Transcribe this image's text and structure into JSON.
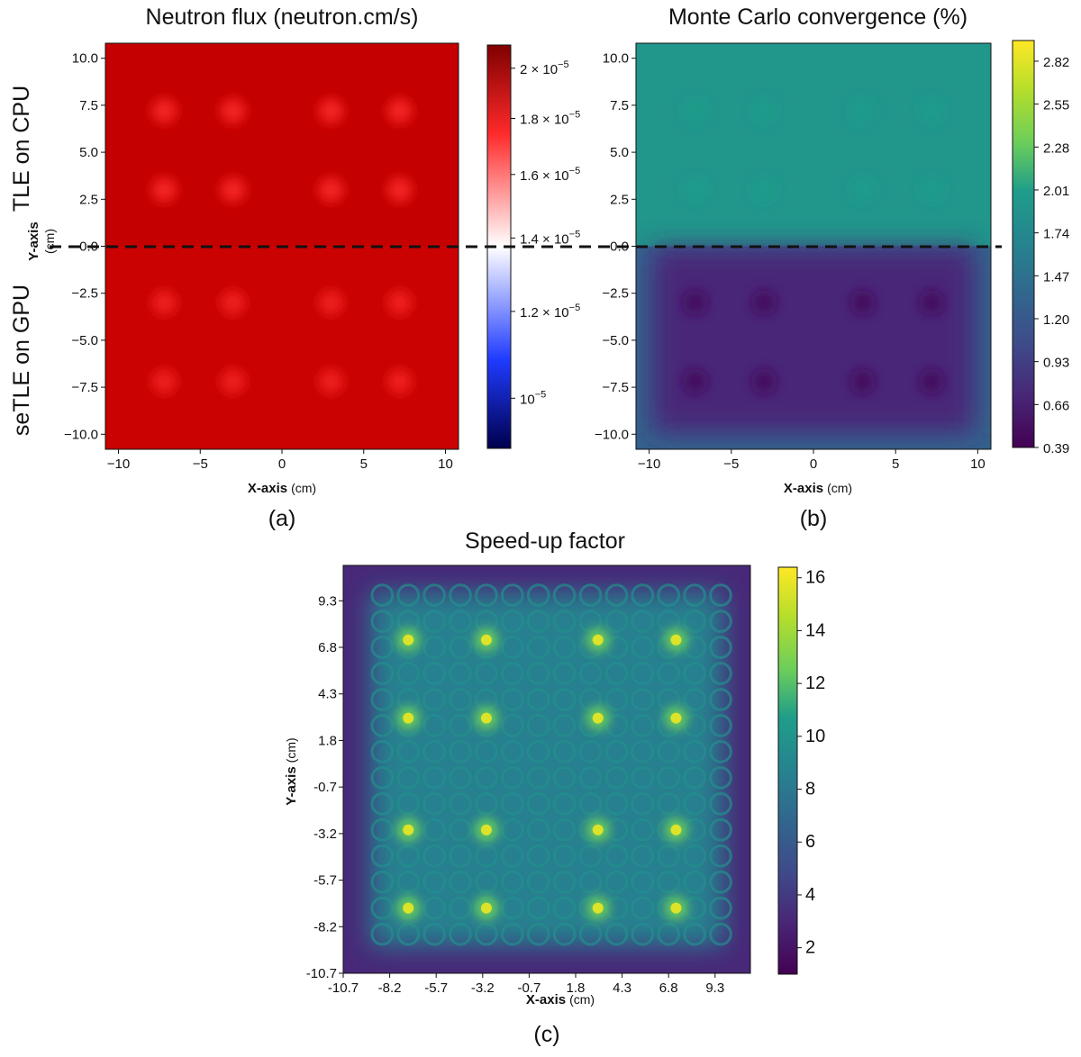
{
  "figure": {
    "side_labels": {
      "top": "TLE on CPU",
      "bottom": "seTLE on GPU",
      "shared_axis_main": "Y-axis",
      "shared_axis_unit": "(cm)"
    }
  },
  "chart_data": [
    {
      "type": "heatmap",
      "panel_label": "(a)",
      "title": "Neutron flux (neutron.cm/s)",
      "xlabel": "X-axis",
      "xlabel_unit": "(cm)",
      "xlim": [
        -10.8,
        10.8
      ],
      "ylim": [
        -10.8,
        10.8
      ],
      "x_ticks": [
        -10,
        -5,
        0,
        5,
        10
      ],
      "x_tick_labels": [
        "−10",
        "−5",
        "0",
        "5",
        "10"
      ],
      "y_ticks": [
        10.0,
        7.5,
        5.0,
        2.5,
        0.0,
        -2.5,
        -5.0,
        -7.5,
        -10.0
      ],
      "y_tick_labels": [
        "10.0",
        "7.5",
        "5.0",
        "2.5",
        "0.0",
        "−2.5",
        "−5.0",
        "−7.5",
        "−10.0"
      ],
      "divider_y": 0.0,
      "colormap": "seismic",
      "colorbar_scale": "log",
      "colorbar_range": [
        9e-06,
        2.1e-05
      ],
      "colorbar_ticks": [
        {
          "value": 2e-05,
          "mant": "2 × 10",
          "exp": "−5"
        },
        {
          "value": 1.8e-05,
          "mant": "1.8 × 10",
          "exp": "−5"
        },
        {
          "value": 1.6e-05,
          "mant": "1.6 × 10",
          "exp": "−5"
        },
        {
          "value": 1.4e-05,
          "mant": "1.4 × 10",
          "exp": "−5"
        },
        {
          "value": 1.2e-05,
          "mant": "1.2 × 10",
          "exp": "−5"
        },
        {
          "value": 1e-05,
          "mant": "10",
          "exp": "−5"
        }
      ],
      "regions": [
        {
          "y_range": [
            0,
            10.8
          ],
          "field_value": 1.9e-05,
          "hot_spot_value": 1.74e-05
        },
        {
          "y_range": [
            -10.8,
            0
          ],
          "field_value": 1.88e-05,
          "hot_spot_value": 1.76e-05
        }
      ],
      "hot_spots_x": [
        -7.2,
        -3.0,
        3.0,
        7.2
      ],
      "hot_spots_y": [
        7.2,
        3.0,
        -3.0,
        -7.2
      ]
    },
    {
      "type": "heatmap",
      "panel_label": "(b)",
      "title": "Monte Carlo convergence (%)",
      "xlabel": "X-axis",
      "xlabel_unit": "(cm)",
      "xlim": [
        -10.8,
        10.8
      ],
      "ylim": [
        -10.8,
        10.8
      ],
      "x_ticks": [
        -10,
        -5,
        0,
        5,
        10
      ],
      "x_tick_labels": [
        "−10",
        "−5",
        "0",
        "5",
        "10"
      ],
      "y_ticks": [
        10.0,
        7.5,
        5.0,
        2.5,
        0.0,
        -2.5,
        -5.0,
        -7.5,
        -10.0
      ],
      "y_tick_labels": [
        "10.0",
        "7.5",
        "5.0",
        "2.5",
        "0.0",
        "−2.5",
        "−5.0",
        "−7.5",
        "−10.0"
      ],
      "divider_y": 0.0,
      "colormap": "viridis",
      "colorbar_range": [
        0.39,
        2.95
      ],
      "colorbar_ticks": [
        2.82,
        2.55,
        2.28,
        2.01,
        1.74,
        1.47,
        1.2,
        0.93,
        0.66,
        0.39
      ],
      "colorbar_tick_labels": [
        "2.82",
        "2.55",
        "2.28",
        "2.01",
        "1.74",
        "1.47",
        "1.20",
        "0.93",
        "0.66",
        "0.39"
      ],
      "regions": [
        {
          "y_range": [
            0,
            10.8
          ],
          "field_value": 1.9,
          "hot_spot_value": 1.97
        },
        {
          "y_range": [
            -10.8,
            0
          ],
          "field_value": 0.72,
          "hot_spot_value": 0.5,
          "edge_value": 1.3
        }
      ],
      "hot_spots_x": [
        -7.2,
        -3.0,
        3.0,
        7.2
      ],
      "hot_spots_y": [
        7.2,
        3.0,
        -3.0,
        -7.2
      ]
    },
    {
      "type": "heatmap",
      "panel_label": "(c)",
      "title": "Speed-up factor",
      "xlabel": "X-axis",
      "xlabel_unit": "(cm)",
      "ylabel": "Y-axis",
      "ylabel_unit": "(cm)",
      "xlim": [
        -10.7,
        11.2
      ],
      "ylim": [
        -10.7,
        11.2
      ],
      "x_ticks": [
        -10.7,
        -8.2,
        -5.7,
        -3.2,
        -0.7,
        1.8,
        4.3,
        6.8,
        9.3
      ],
      "x_tick_labels": [
        "-10.7",
        "-8.2",
        "-5.7",
        "-3.2",
        "-0.7",
        "1.8",
        "4.3",
        "6.8",
        "9.3"
      ],
      "y_ticks": [
        9.3,
        6.8,
        4.3,
        1.8,
        -0.7,
        -3.2,
        -5.7,
        -8.2,
        -10.7
      ],
      "y_tick_labels": [
        "9.3",
        "6.8",
        "4.3",
        "1.8",
        "-0.7",
        "-3.2",
        "-5.7",
        "-8.2",
        "-10.7"
      ],
      "colormap": "viridis",
      "colorbar_range": [
        1.0,
        16.4
      ],
      "colorbar_ticks": [
        16,
        14,
        12,
        10,
        8,
        6,
        4,
        2
      ],
      "colorbar_tick_labels": [
        "16",
        "14",
        "12",
        "10",
        "8",
        "6",
        "4",
        "2"
      ],
      "field_value": 8.5,
      "edge_value": 3.0,
      "pin_value": 9.5,
      "hot_spot_value": 15.5,
      "pin_grid": [
        -8.6,
        -7.2,
        -5.8,
        -4.4,
        -3.0,
        -1.6,
        -0.2,
        1.2,
        2.6,
        4.0,
        5.4,
        6.8,
        8.2,
        9.6
      ],
      "hot_spots_x": [
        -7.2,
        -3.0,
        3.0,
        7.2
      ],
      "hot_spots_y": [
        7.2,
        3.0,
        -3.0,
        -7.2
      ]
    }
  ]
}
